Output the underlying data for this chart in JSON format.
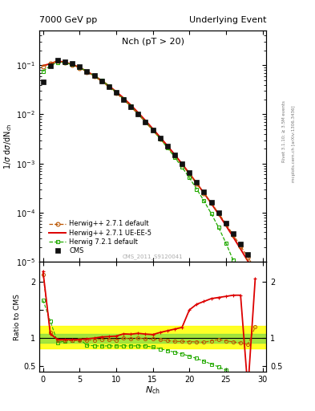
{
  "title_left": "7000 GeV pp",
  "title_right": "Underlying Event",
  "plot_label": "Nch (pT > 20)",
  "watermark": "CMS_2011_S9120041",
  "ylabel_main": "1/σ dσ/dN_{ch}",
  "ylabel_ratio": "Ratio to CMS",
  "xlabel": "N_{ch}",
  "right_label1": "Rivet 3.1.10; ≥ 3.5M events",
  "right_label2": "mcplots.cern.ch [arXiv:1306.3436]",
  "cms_x": [
    0,
    1,
    2,
    3,
    4,
    5,
    6,
    7,
    8,
    9,
    10,
    11,
    12,
    13,
    14,
    15,
    16,
    17,
    18,
    19,
    20,
    21,
    22,
    23,
    24,
    25,
    26,
    27,
    28,
    29
  ],
  "cms_y": [
    0.045,
    0.098,
    0.125,
    0.118,
    0.107,
    0.092,
    0.076,
    0.061,
    0.048,
    0.037,
    0.028,
    0.02,
    0.0145,
    0.01,
    0.007,
    0.0048,
    0.0033,
    0.00225,
    0.00152,
    0.001,
    0.00065,
    0.00042,
    0.00027,
    0.000165,
    0.0001,
    6.2e-05,
    3.8e-05,
    2.3e-05,
    1.4e-05,
    6e-06
  ],
  "hw271_x": [
    0,
    1,
    2,
    3,
    4,
    5,
    6,
    7,
    8,
    9,
    10,
    11,
    12,
    13,
    14,
    15,
    16,
    17,
    18,
    19,
    20,
    21,
    22,
    23,
    24,
    25,
    26,
    27,
    28,
    29
  ],
  "hw271_y": [
    0.095,
    0.108,
    0.12,
    0.113,
    0.102,
    0.088,
    0.073,
    0.059,
    0.047,
    0.036,
    0.027,
    0.02,
    0.0143,
    0.01,
    0.0069,
    0.00472,
    0.0032,
    0.00215,
    0.00143,
    0.00094,
    0.00061,
    0.000392,
    0.00025,
    0.000157,
    9.74e-05,
    5.9e-05,
    3.54e-05,
    2.1e-05,
    1.24e-05,
    7.2e-06
  ],
  "hw271ue_x": [
    0,
    1,
    2,
    3,
    4,
    5,
    6,
    7,
    8,
    9,
    10,
    11,
    12,
    13,
    14,
    15,
    16,
    17,
    18,
    19,
    20,
    21,
    22,
    23,
    24,
    25,
    26,
    27,
    28,
    29
  ],
  "hw271ue_y": [
    0.098,
    0.107,
    0.122,
    0.115,
    0.104,
    0.09,
    0.075,
    0.061,
    0.049,
    0.038,
    0.029,
    0.0215,
    0.0155,
    0.01085,
    0.0075,
    0.0051,
    0.00344,
    0.0023,
    0.001518,
    0.000985,
    0.000632,
    0.0004,
    0.00025,
    0.000154,
    9.34e-05,
    5.5e-05,
    3.2e-05,
    1.83e-05,
    1.04e-05,
    5.7e-06
  ],
  "hw721_x": [
    0,
    1,
    2,
    3,
    4,
    5,
    6,
    7,
    8,
    9,
    10,
    11,
    12,
    13,
    14,
    15,
    16,
    17,
    18,
    19,
    20,
    21,
    22,
    23,
    24,
    25,
    26,
    27,
    28,
    29
  ],
  "hw721_y": [
    0.075,
    0.098,
    0.115,
    0.112,
    0.103,
    0.09,
    0.075,
    0.061,
    0.049,
    0.038,
    0.028,
    0.0205,
    0.0147,
    0.0103,
    0.00712,
    0.00482,
    0.0032,
    0.00209,
    0.00134,
    0.00084,
    0.000514,
    0.000303,
    0.000174,
    9.58e-05,
    5e-05,
    2.42e-05,
    1.07e-05,
    4.2e-06,
    1.8e-06,
    8.2e-07
  ],
  "ratio_hw271_y": [
    2.12,
    1.1,
    0.96,
    0.958,
    0.954,
    0.957,
    0.961,
    0.967,
    0.979,
    0.973,
    0.964,
    1.0,
    0.986,
    1.0,
    0.986,
    0.983,
    0.97,
    0.956,
    0.941,
    0.94,
    0.938,
    0.933,
    0.926,
    0.952,
    0.974,
    0.952,
    0.932,
    0.913,
    0.886,
    1.2
  ],
  "ratio_hw271ue_y": [
    2.18,
    1.07,
    0.976,
    0.975,
    0.972,
    0.978,
    0.987,
    1.0,
    1.021,
    1.027,
    1.036,
    1.075,
    1.069,
    1.085,
    1.071,
    1.063,
    1.1,
    1.13,
    1.16,
    1.19,
    1.5,
    1.6,
    1.65,
    1.7,
    1.72,
    1.74,
    1.76,
    1.76,
    0.1,
    2.05
  ],
  "ratio_hw721_y": [
    1.67,
    1.3,
    0.92,
    0.949,
    0.963,
    0.978,
    0.875,
    0.862,
    0.862,
    0.862,
    0.862,
    0.862,
    0.862,
    0.862,
    0.862,
    0.84,
    0.81,
    0.78,
    0.75,
    0.72,
    0.68,
    0.64,
    0.59,
    0.54,
    0.49,
    0.43,
    0.35,
    0.25,
    0.35,
    0.137
  ],
  "cms_color": "#111111",
  "hw271_color": "#bb5500",
  "hw271ue_color": "#dd0000",
  "hw721_color": "#22aa00",
  "band_yellow_lo": 0.82,
  "band_yellow_hi": 1.22,
  "band_green_lo": 0.92,
  "band_green_hi": 1.08,
  "ylim_main": [
    1e-05,
    0.5
  ],
  "ylim_ratio": [
    0.4,
    2.35
  ],
  "xlim": [
    -0.5,
    30.5
  ]
}
